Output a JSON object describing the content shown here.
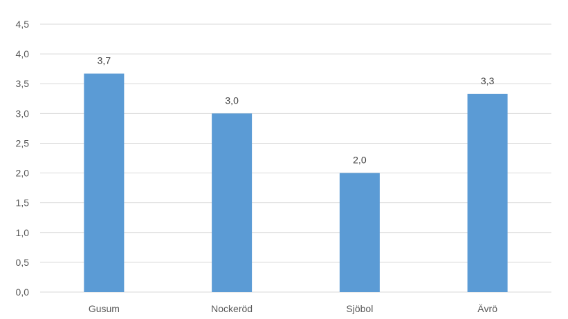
{
  "chart_data": {
    "type": "bar",
    "categories": [
      "Gusum",
      "Nockeröd",
      "Sjöbol",
      "Ävrö"
    ],
    "values": [
      3.67,
      3.0,
      2.0,
      3.33
    ],
    "data_labels": [
      "3,7",
      "3,0",
      "2,0",
      "3,3"
    ],
    "y_ticks": [
      "0,0",
      "0,5",
      "1,0",
      "1,5",
      "2,0",
      "2,5",
      "3,0",
      "3,5",
      "4,0",
      "4,5"
    ],
    "ylim": [
      0,
      4.5
    ],
    "grid": true,
    "legend": "none",
    "bar_color": "#5b9bd5",
    "grid_color": "#d9d9d9"
  }
}
